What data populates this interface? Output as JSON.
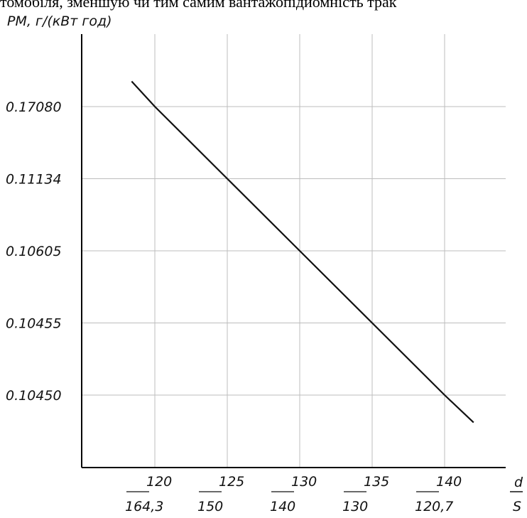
{
  "header_text": "томобіля, зменшую чи тим самим вантажопідйомність трак",
  "chart_data": {
    "type": "line",
    "ylabel": "PM, г/(кВт год)",
    "xlabel_top": "d",
    "xlabel_bottom": "S",
    "x_ticks": [
      {
        "d": "120",
        "s": "164,3"
      },
      {
        "d": "125",
        "s": "150"
      },
      {
        "d": "130",
        "s": "140"
      },
      {
        "d": "135",
        "s": "130"
      },
      {
        "d": "140",
        "s": "120,7"
      }
    ],
    "y_ticks": [
      "0.10450",
      "0.10455",
      "0.10605",
      "0.11134",
      "0.17080"
    ],
    "series": [
      {
        "points": [
          {
            "x": 118.4,
            "y_level": 4.35
          },
          {
            "x": 120,
            "y": "0.17080"
          },
          {
            "x": 125,
            "y": "0.11134"
          },
          {
            "x": 130,
            "y": "0.10605"
          },
          {
            "x": 135,
            "y": "0.10455"
          },
          {
            "x": 140,
            "y": "0.10450"
          },
          {
            "x": 142,
            "y_level": -0.38
          }
        ]
      }
    ],
    "grid": true,
    "colors": {
      "line": "#111111",
      "grid": "#bdbdbd",
      "axis": "#000000"
    }
  }
}
